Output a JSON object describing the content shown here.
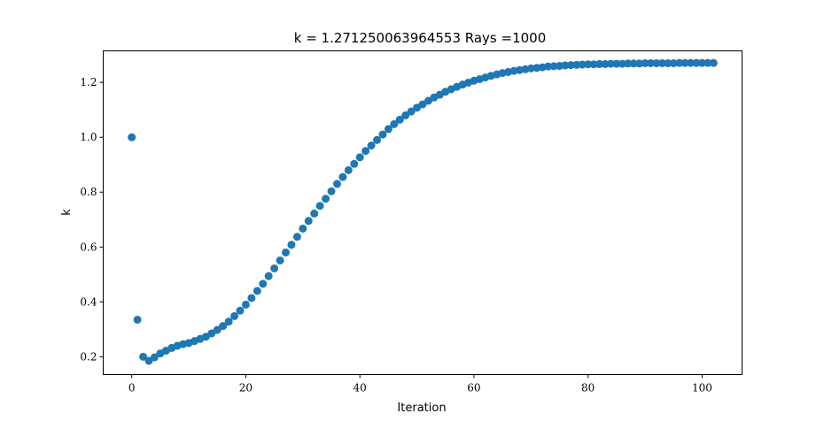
{
  "chart_data": {
    "type": "scatter",
    "title": "k = 1.271250063964553 Rays =1000",
    "xlabel": "Iteration",
    "ylabel": "k",
    "xlim": [
      -5,
      107
    ],
    "ylim": [
      0.135,
      1.315
    ],
    "xticks": [
      0,
      20,
      40,
      60,
      80,
      100
    ],
    "xtick_labels": [
      "0",
      "20",
      "40",
      "60",
      "80",
      "100"
    ],
    "yticks": [
      0.2,
      0.4,
      0.6,
      0.8,
      1.0,
      1.2
    ],
    "ytick_labels": [
      "0.2",
      "0.4",
      "0.6",
      "0.8",
      "1.0",
      "1.2"
    ],
    "grid": false,
    "marker_color": "#1f77b4",
    "x": [
      0,
      1,
      2,
      3,
      4,
      5,
      6,
      7,
      8,
      9,
      10,
      11,
      12,
      13,
      14,
      15,
      16,
      17,
      18,
      19,
      20,
      21,
      22,
      23,
      24,
      25,
      26,
      27,
      28,
      29,
      30,
      31,
      32,
      33,
      34,
      35,
      36,
      37,
      38,
      39,
      40,
      41,
      42,
      43,
      44,
      45,
      46,
      47,
      48,
      49,
      50,
      51,
      52,
      53,
      54,
      55,
      56,
      57,
      58,
      59,
      60,
      61,
      62,
      63,
      64,
      65,
      66,
      67,
      68,
      69,
      70,
      71,
      72,
      73,
      74,
      75,
      76,
      77,
      78,
      79,
      80,
      81,
      82,
      83,
      84,
      85,
      86,
      87,
      88,
      89,
      90,
      91,
      92,
      93,
      94,
      95,
      96,
      97,
      98,
      99,
      100,
      101,
      102
    ],
    "y": [
      1.0,
      0.335,
      0.2,
      0.185,
      0.198,
      0.212,
      0.222,
      0.232,
      0.24,
      0.246,
      0.25,
      0.257,
      0.265,
      0.273,
      0.285,
      0.298,
      0.312,
      0.328,
      0.348,
      0.368,
      0.39,
      0.414,
      0.44,
      0.466,
      0.494,
      0.522,
      0.551,
      0.58,
      0.608,
      0.637,
      0.667,
      0.695,
      0.722,
      0.75,
      0.776,
      0.803,
      0.83,
      0.855,
      0.88,
      0.903,
      0.927,
      0.95,
      0.97,
      0.99,
      1.01,
      1.03,
      1.048,
      1.064,
      1.08,
      1.094,
      1.108,
      1.12,
      1.133,
      1.145,
      1.155,
      1.166,
      1.175,
      1.184,
      1.192,
      1.199,
      1.206,
      1.212,
      1.218,
      1.224,
      1.229,
      1.234,
      1.238,
      1.242,
      1.245,
      1.248,
      1.251,
      1.253,
      1.255,
      1.258,
      1.259,
      1.26,
      1.262,
      1.263,
      1.264,
      1.265,
      1.266,
      1.266,
      1.267,
      1.267,
      1.268,
      1.268,
      1.268,
      1.269,
      1.269,
      1.269,
      1.27,
      1.27,
      1.27,
      1.27,
      1.27,
      1.27,
      1.271,
      1.271,
      1.271,
      1.271,
      1.271,
      1.271,
      1.271
    ]
  }
}
